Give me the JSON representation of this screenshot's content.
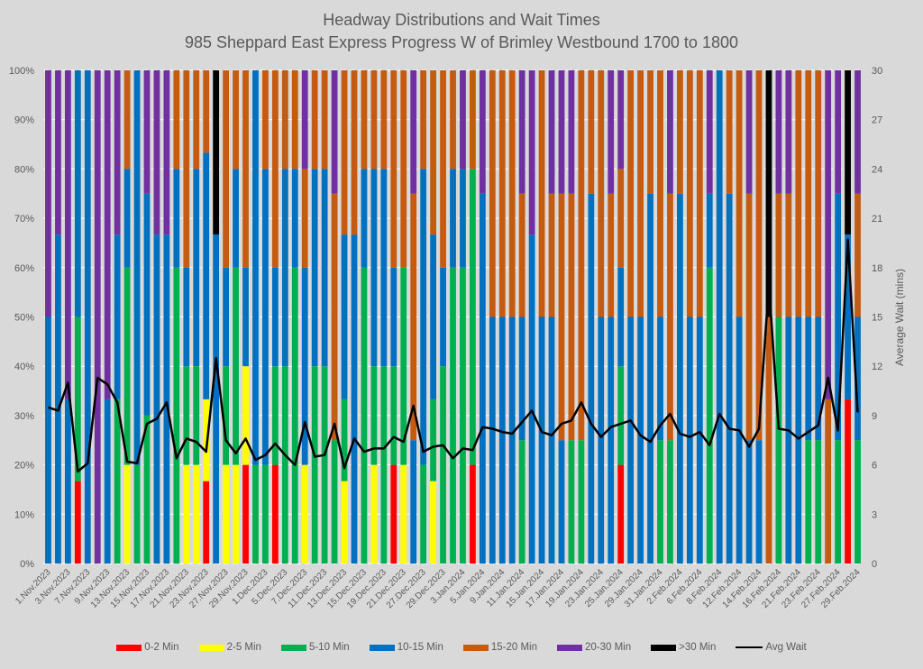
{
  "chart_data": {
    "type": "bar",
    "subtype": "stacked-100-percent with line on secondary axis",
    "title": "Headway Distributions and Wait Times",
    "subtitle": "985 Sheppard East Express  Progress W of Brimley Westbound 1700 to 1800",
    "ylabel_left": "",
    "ylabel_right": "Average Wait (mins)",
    "ylim_left": [
      0,
      100
    ],
    "ylim_right": [
      0,
      30
    ],
    "yticks_left": [
      "0%",
      "10%",
      "20%",
      "30%",
      "40%",
      "50%",
      "60%",
      "70%",
      "80%",
      "90%",
      "100%"
    ],
    "yticks_right": [
      "0",
      "3",
      "6",
      "9",
      "12",
      "15",
      "18",
      "21",
      "24",
      "27",
      "30"
    ],
    "grid": true,
    "legend_position": "bottom",
    "x_labels": [
      "1.Nov.2023",
      "3.Nov.2023",
      "7.Nov.2023",
      "9.Nov.2023",
      "13.Nov.2023",
      "15.Nov.2023",
      "17.Nov.2023",
      "21.Nov.2023",
      "23.Nov.2023",
      "27.Nov.2023",
      "29.Nov.2023",
      "1.Dec.2023",
      "5.Dec.2023",
      "7.Dec.2023",
      "11.Dec.2023",
      "13.Dec.2023",
      "15.Dec.2023",
      "19.Dec.2023",
      "21.Dec.2023",
      "27.Dec.2023",
      "29.Dec.2023",
      "3.Jan.2024",
      "5.Jan.2024",
      "9.Jan.2024",
      "11.Jan.2024",
      "15.Jan.2024",
      "17.Jan.2024",
      "19.Jan.2024",
      "23.Jan.2024",
      "25.Jan.2024",
      "29.Jan.2024",
      "31.Jan.2024",
      "2.Feb.2024",
      "6.Feb.2024",
      "8.Feb.2024",
      "12.Feb.2024",
      "14.Feb.2024",
      "16.Feb.2024",
      "21.Feb.2024",
      "23.Feb.2024",
      "27.Feb.2024",
      "29.Feb.2024"
    ],
    "x_label_every": 2,
    "series": [
      {
        "name": "0-2 Min",
        "color": "#ff0000"
      },
      {
        "name": "2-5 Min",
        "color": "#ffff00"
      },
      {
        "name": "5-10 Min",
        "color": "#00b050"
      },
      {
        "name": "10-15 Min",
        "color": "#0070c0"
      },
      {
        "name": "15-20 Min",
        "color": "#c55a11"
      },
      {
        "name": "20-30 Min",
        "color": "#7030a0"
      },
      {
        "name": ">30 Min",
        "color": "#000000"
      }
    ],
    "line_series": {
      "name": "Avg Wait",
      "color": "#000000"
    },
    "bars_cumulative_note": "each bar lists cumulative upper bounds (%) for series in order 0-2,2-5,5-10,10-15,15-20,20-30,>30",
    "bars": [
      [
        0,
        0,
        0,
        50,
        50,
        100,
        100
      ],
      [
        0,
        0,
        0,
        66.7,
        66.7,
        100,
        100
      ],
      [
        0,
        0,
        0,
        33.3,
        33.3,
        100,
        100
      ],
      [
        16.7,
        16.7,
        50,
        100,
        100,
        100,
        100
      ],
      [
        0,
        0,
        0,
        100,
        100,
        100,
        100
      ],
      [
        0,
        0,
        0,
        0,
        0,
        100,
        100
      ],
      [
        0,
        0,
        0,
        33.3,
        33.3,
        100,
        100
      ],
      [
        0,
        0,
        33.3,
        66.7,
        66.7,
        100,
        100
      ],
      [
        0,
        20,
        60,
        80,
        100,
        100,
        100
      ],
      [
        0,
        0,
        20,
        100,
        100,
        100,
        100
      ],
      [
        0,
        0,
        30,
        75,
        75,
        100,
        100
      ],
      [
        0,
        0,
        0,
        66.7,
        66.7,
        100,
        100
      ],
      [
        0,
        0,
        0,
        66.7,
        66.7,
        100,
        100
      ],
      [
        0,
        0,
        60,
        80,
        100,
        100,
        100
      ],
      [
        0,
        20,
        40,
        60,
        100,
        100,
        100
      ],
      [
        0,
        20,
        40,
        80,
        100,
        100,
        100
      ],
      [
        16.7,
        33.3,
        33.3,
        83.3,
        100,
        100,
        100
      ],
      [
        0,
        0,
        0,
        66.7,
        66.7,
        66.7,
        100
      ],
      [
        0,
        20,
        40,
        60,
        100,
        100,
        100
      ],
      [
        0,
        20,
        60,
        80,
        100,
        100,
        100
      ],
      [
        20,
        40,
        40,
        60,
        100,
        100,
        100
      ],
      [
        0,
        0,
        20,
        100,
        100,
        100,
        100
      ],
      [
        0,
        0,
        20,
        80,
        100,
        100,
        100
      ],
      [
        20,
        20,
        40,
        60,
        100,
        100,
        100
      ],
      [
        0,
        0,
        40,
        80,
        100,
        100,
        100
      ],
      [
        0,
        0,
        60,
        80,
        100,
        100,
        100
      ],
      [
        0,
        20,
        20,
        60,
        80,
        100,
        100
      ],
      [
        0,
        0,
        40,
        80,
        100,
        100,
        100
      ],
      [
        0,
        0,
        40,
        80,
        100,
        100,
        100
      ],
      [
        0,
        0,
        25,
        25,
        75,
        100,
        100
      ],
      [
        0,
        16.7,
        33.3,
        66.7,
        100,
        100,
        100
      ],
      [
        0,
        0,
        0,
        66.7,
        100,
        100,
        100
      ],
      [
        0,
        0,
        60,
        80,
        100,
        100,
        100
      ],
      [
        0,
        20,
        40,
        80,
        100,
        100,
        100
      ],
      [
        0,
        0,
        40,
        80,
        100,
        100,
        100
      ],
      [
        20,
        20,
        40,
        60,
        100,
        100,
        100
      ],
      [
        0,
        20,
        60,
        60,
        100,
        100,
        100
      ],
      [
        0,
        0,
        0,
        25,
        75,
        100,
        100
      ],
      [
        0,
        0,
        20,
        80,
        100,
        100,
        100
      ],
      [
        0,
        16.7,
        33.3,
        66.7,
        100,
        100,
        100
      ],
      [
        0,
        0,
        40,
        60,
        100,
        100,
        100
      ],
      [
        0,
        0,
        60,
        80,
        100,
        100,
        100
      ],
      [
        0,
        0,
        60,
        80,
        80,
        100,
        100
      ],
      [
        20,
        20,
        80,
        80,
        100,
        100,
        100
      ],
      [
        0,
        0,
        0,
        75,
        75,
        100,
        100
      ],
      [
        0,
        0,
        0,
        50,
        100,
        100,
        100
      ],
      [
        0,
        0,
        0,
        50,
        100,
        100,
        100
      ],
      [
        0,
        0,
        0,
        50,
        100,
        100,
        100
      ],
      [
        0,
        0,
        25,
        50,
        75,
        100,
        100
      ],
      [
        0,
        0,
        0,
        66.7,
        66.7,
        100,
        100
      ],
      [
        0,
        0,
        0,
        50,
        100,
        100,
        100
      ],
      [
        0,
        0,
        0,
        50,
        75,
        100,
        100
      ],
      [
        0,
        0,
        0,
        25,
        75,
        100,
        100
      ],
      [
        0,
        0,
        25,
        25,
        75,
        100,
        100
      ],
      [
        0,
        0,
        25,
        25,
        100,
        100,
        100
      ],
      [
        0,
        0,
        0,
        75,
        100,
        100,
        100
      ],
      [
        0,
        0,
        0,
        50,
        100,
        100,
        100
      ],
      [
        0,
        0,
        0,
        50,
        75,
        100,
        100
      ],
      [
        20,
        20,
        40,
        60,
        80,
        100,
        100
      ],
      [
        0,
        0,
        0,
        50,
        100,
        100,
        100
      ],
      [
        0,
        0,
        0,
        50,
        100,
        100,
        100
      ],
      [
        0,
        0,
        0,
        75,
        100,
        100,
        100
      ],
      [
        0,
        0,
        25,
        50,
        100,
        100,
        100
      ],
      [
        0,
        0,
        25,
        25,
        75,
        100,
        100
      ],
      [
        0,
        0,
        0,
        75,
        100,
        100,
        100
      ],
      [
        0,
        0,
        0,
        50,
        100,
        100,
        100
      ],
      [
        0,
        0,
        0,
        50,
        100,
        100,
        100
      ],
      [
        0,
        0,
        60,
        75,
        75,
        100,
        100
      ],
      [
        0,
        0,
        0,
        100,
        100,
        100,
        100
      ],
      [
        0,
        0,
        0,
        75,
        100,
        100,
        100
      ],
      [
        0,
        0,
        0,
        50,
        100,
        100,
        100
      ],
      [
        0,
        0,
        0,
        25,
        75,
        100,
        100
      ],
      [
        0,
        0,
        0,
        25,
        100,
        100,
        100
      ],
      [
        0,
        0,
        0,
        0,
        50,
        50,
        100
      ],
      [
        0,
        0,
        50,
        50,
        75,
        100,
        100
      ],
      [
        0,
        0,
        0,
        50,
        75,
        100,
        100
      ],
      [
        0,
        0,
        0,
        50,
        100,
        100,
        100
      ],
      [
        0,
        0,
        25,
        50,
        100,
        100,
        100
      ],
      [
        0,
        0,
        25,
        50,
        100,
        100,
        100
      ],
      [
        0,
        0,
        0,
        0,
        33.3,
        100,
        100
      ],
      [
        0,
        0,
        25,
        75,
        75,
        100,
        100
      ],
      [
        33.3,
        33.3,
        33.3,
        66.7,
        66.7,
        66.7,
        100
      ],
      [
        0,
        0,
        25,
        50,
        75,
        100,
        100
      ]
    ],
    "avg_wait": [
      9.5,
      9.3,
      11.0,
      5.6,
      6.1,
      11.3,
      10.9,
      9.8,
      6.2,
      6.1,
      8.5,
      8.8,
      9.8,
      6.4,
      7.6,
      7.4,
      6.8,
      12.5,
      7.5,
      6.7,
      7.6,
      6.3,
      6.6,
      7.3,
      6.6,
      6.0,
      8.6,
      6.5,
      6.6,
      8.5,
      5.8,
      7.6,
      6.8,
      7.0,
      7.0,
      7.7,
      7.4,
      9.6,
      6.8,
      7.1,
      7.2,
      6.4,
      7.0,
      6.9,
      8.3,
      8.2,
      8.0,
      7.9,
      8.6,
      9.3,
      8.0,
      7.8,
      8.5,
      8.7,
      9.8,
      8.5,
      7.7,
      8.3,
      8.5,
      8.7,
      7.8,
      7.4,
      8.4,
      9.1,
      7.9,
      7.7,
      8.0,
      7.2,
      9.1,
      8.2,
      8.1,
      7.1,
      8.2,
      17.0,
      8.2,
      8.1,
      7.6,
      8.0,
      8.4,
      11.3,
      8.1,
      19.7,
      9.2
    ]
  }
}
